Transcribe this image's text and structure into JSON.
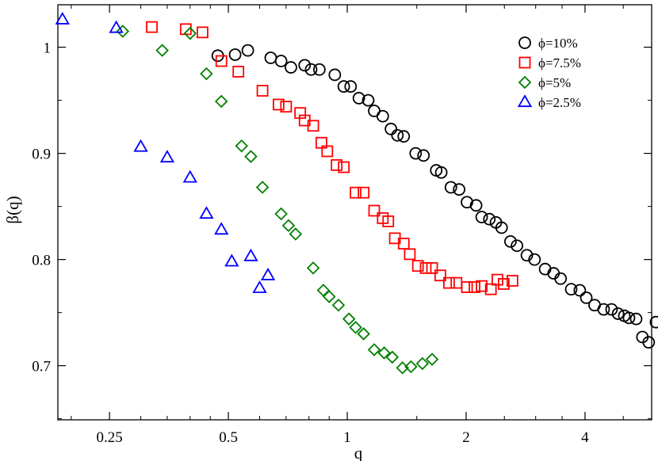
{
  "chart_data": {
    "type": "scatter",
    "xscale": "log",
    "xlabel": "q",
    "ylabel": "β(q)",
    "xlim": [
      0.185,
      5.9
    ],
    "ylim": [
      0.649,
      1.04
    ],
    "xticks": [
      0.25,
      0.5,
      1,
      2,
      4
    ],
    "xtick_labels": [
      "0.25",
      "0.5",
      "1",
      "2",
      "4"
    ],
    "yticks": [
      0.7,
      0.8,
      0.9,
      1.0
    ],
    "ytick_labels": [
      "0.7",
      "0.8",
      "0.9",
      "1"
    ],
    "grid": false,
    "legend": "top-right",
    "series": [
      {
        "name": "ϕ=10%",
        "marker": "circle",
        "color": "#000000",
        "points": [
          [
            0.47,
            0.992
          ],
          [
            0.52,
            0.993
          ],
          [
            0.56,
            0.997
          ],
          [
            0.64,
            0.99
          ],
          [
            0.68,
            0.987
          ],
          [
            0.72,
            0.981
          ],
          [
            0.78,
            0.983
          ],
          [
            0.81,
            0.979
          ],
          [
            0.85,
            0.979
          ],
          [
            0.93,
            0.974
          ],
          [
            0.98,
            0.963
          ],
          [
            1.02,
            0.963
          ],
          [
            1.07,
            0.952
          ],
          [
            1.13,
            0.95
          ],
          [
            1.17,
            0.94
          ],
          [
            1.23,
            0.935
          ],
          [
            1.29,
            0.923
          ],
          [
            1.34,
            0.917
          ],
          [
            1.39,
            0.916
          ],
          [
            1.49,
            0.9
          ],
          [
            1.56,
            0.898
          ],
          [
            1.68,
            0.884
          ],
          [
            1.73,
            0.882
          ],
          [
            1.83,
            0.868
          ],
          [
            1.92,
            0.866
          ],
          [
            2.01,
            0.854
          ],
          [
            2.12,
            0.851
          ],
          [
            2.19,
            0.84
          ],
          [
            2.29,
            0.838
          ],
          [
            2.38,
            0.835
          ],
          [
            2.46,
            0.83
          ],
          [
            2.59,
            0.817
          ],
          [
            2.69,
            0.813
          ],
          [
            2.85,
            0.804
          ],
          [
            2.98,
            0.8
          ],
          [
            3.17,
            0.791
          ],
          [
            3.33,
            0.787
          ],
          [
            3.47,
            0.782
          ],
          [
            3.69,
            0.772
          ],
          [
            3.88,
            0.771
          ],
          [
            4.03,
            0.764
          ],
          [
            4.23,
            0.757
          ],
          [
            4.46,
            0.753
          ],
          [
            4.67,
            0.753
          ],
          [
            4.85,
            0.749
          ],
          [
            5.03,
            0.747
          ],
          [
            5.17,
            0.745
          ],
          [
            5.39,
            0.744
          ],
          [
            5.59,
            0.727
          ],
          [
            5.8,
            0.722
          ],
          [
            6.05,
            0.741
          ]
        ]
      },
      {
        "name": "ϕ=7.5%",
        "marker": "square",
        "color": "#ff0000",
        "points": [
          [
            0.32,
            1.019
          ],
          [
            0.39,
            1.017
          ],
          [
            0.43,
            1.014
          ],
          [
            0.48,
            0.987
          ],
          [
            0.53,
            0.977
          ],
          [
            0.61,
            0.959
          ],
          [
            0.67,
            0.946
          ],
          [
            0.7,
            0.944
          ],
          [
            0.76,
            0.938
          ],
          [
            0.78,
            0.931
          ],
          [
            0.82,
            0.926
          ],
          [
            0.86,
            0.91
          ],
          [
            0.89,
            0.902
          ],
          [
            0.94,
            0.889
          ],
          [
            0.98,
            0.887
          ],
          [
            1.05,
            0.863
          ],
          [
            1.1,
            0.863
          ],
          [
            1.17,
            0.846
          ],
          [
            1.23,
            0.839
          ],
          [
            1.27,
            0.836
          ],
          [
            1.32,
            0.82
          ],
          [
            1.39,
            0.815
          ],
          [
            1.44,
            0.805
          ],
          [
            1.51,
            0.794
          ],
          [
            1.58,
            0.792
          ],
          [
            1.64,
            0.792
          ],
          [
            1.72,
            0.785
          ],
          [
            1.81,
            0.778
          ],
          [
            1.89,
            0.778
          ],
          [
            2.01,
            0.774
          ],
          [
            2.1,
            0.774
          ],
          [
            2.19,
            0.775
          ],
          [
            2.31,
            0.772
          ],
          [
            2.4,
            0.781
          ],
          [
            2.49,
            0.777
          ],
          [
            2.62,
            0.78
          ]
        ]
      },
      {
        "name": "ϕ=5%",
        "marker": "diamond",
        "color": "#008000",
        "points": [
          [
            0.27,
            1.015
          ],
          [
            0.34,
            0.997
          ],
          [
            0.4,
            1.013
          ],
          [
            0.44,
            0.975
          ],
          [
            0.48,
            0.949
          ],
          [
            0.54,
            0.907
          ],
          [
            0.57,
            0.897
          ],
          [
            0.61,
            0.868
          ],
          [
            0.68,
            0.843
          ],
          [
            0.71,
            0.832
          ],
          [
            0.74,
            0.824
          ],
          [
            0.82,
            0.792
          ],
          [
            0.87,
            0.771
          ],
          [
            0.9,
            0.765
          ],
          [
            0.95,
            0.757
          ],
          [
            1.01,
            0.744
          ],
          [
            1.05,
            0.736
          ],
          [
            1.1,
            0.73
          ],
          [
            1.17,
            0.715
          ],
          [
            1.24,
            0.712
          ],
          [
            1.3,
            0.708
          ],
          [
            1.38,
            0.698
          ],
          [
            1.45,
            0.699
          ],
          [
            1.55,
            0.702
          ],
          [
            1.64,
            0.706
          ]
        ]
      },
      {
        "name": "ϕ=2.5%",
        "marker": "triangle",
        "color": "#0000ff",
        "points": [
          [
            0.19,
            1.026
          ],
          [
            0.26,
            1.018
          ],
          [
            0.3,
            0.906
          ],
          [
            0.35,
            0.896
          ],
          [
            0.4,
            0.877
          ],
          [
            0.44,
            0.843
          ],
          [
            0.48,
            0.828
          ],
          [
            0.51,
            0.798
          ],
          [
            0.57,
            0.803
          ],
          [
            0.6,
            0.773
          ],
          [
            0.63,
            0.785
          ]
        ]
      }
    ]
  }
}
